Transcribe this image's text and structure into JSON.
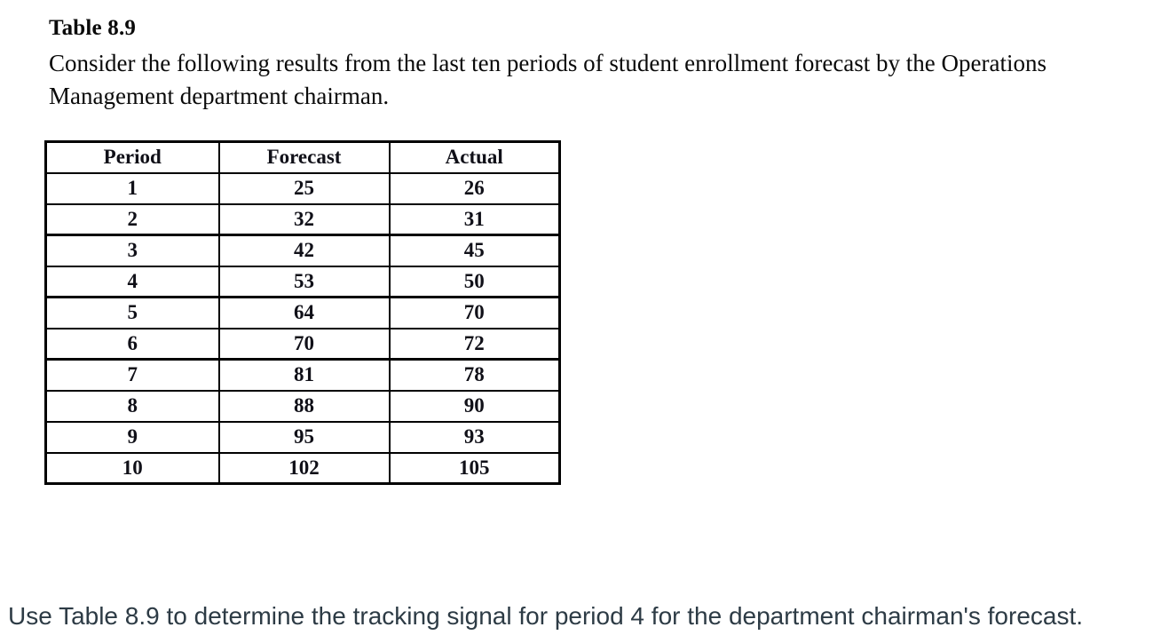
{
  "colors": {
    "background": "#ffffff",
    "document_text": "#0a0a0a",
    "table_border": "#000000",
    "question_text": "#2d3b45"
  },
  "document": {
    "title": "Table 8.9",
    "intro_lines": [
      "Consider the following results from the last ten periods of student enrollment forecast by the Operations",
      "Management department chairman."
    ]
  },
  "chart_data": {
    "type": "table",
    "title": "Table 8.9",
    "columns": [
      "Period",
      "Forecast",
      "Actual"
    ],
    "rows": [
      [
        "1",
        "25",
        "26"
      ],
      [
        "2",
        "32",
        "31"
      ],
      [
        "3",
        "42",
        "45"
      ],
      [
        "4",
        "53",
        "50"
      ],
      [
        "5",
        "64",
        "70"
      ],
      [
        "6",
        "70",
        "72"
      ],
      [
        "7",
        "81",
        "78"
      ],
      [
        "8",
        "88",
        "90"
      ],
      [
        "9",
        "95",
        "93"
      ],
      [
        "10",
        "102",
        "105"
      ]
    ]
  },
  "question": {
    "text": "Use Table 8.9 to determine the tracking signal for period 4 for the department chairman's forecast."
  }
}
